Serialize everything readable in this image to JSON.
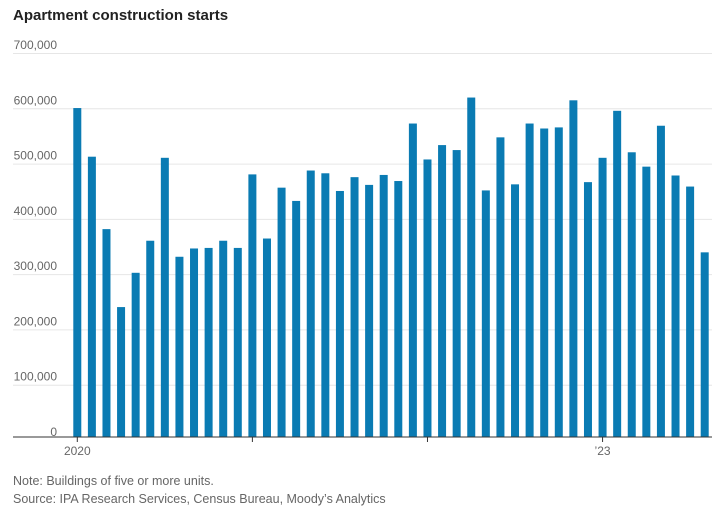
{
  "chart_data": {
    "type": "bar",
    "title": "Apartment construction starts",
    "xlabel": "",
    "ylabel": "",
    "ylim": [
      0,
      700000
    ],
    "yticks": [
      0,
      100000,
      200000,
      300000,
      400000,
      500000,
      600000,
      700000
    ],
    "ytick_labels": [
      "0",
      "100,000",
      "200,000",
      "300,000",
      "400,000",
      "500,000",
      "600,000",
      "700,000"
    ],
    "xtick_labels": [
      {
        "index": 0,
        "label": "2020"
      },
      {
        "index": 12,
        "label": ""
      },
      {
        "index": 24,
        "label": ""
      },
      {
        "index": 36,
        "label": "’23"
      }
    ],
    "categories": [
      "2020-01",
      "2020-02",
      "2020-03",
      "2020-04",
      "2020-05",
      "2020-06",
      "2020-07",
      "2020-08",
      "2020-09",
      "2020-10",
      "2020-11",
      "2020-12",
      "2021-01",
      "2021-02",
      "2021-03",
      "2021-04",
      "2021-05",
      "2021-06",
      "2021-07",
      "2021-08",
      "2021-09",
      "2021-10",
      "2021-11",
      "2021-12",
      "2022-01",
      "2022-02",
      "2022-03",
      "2022-04",
      "2022-05",
      "2022-06",
      "2022-07",
      "2022-08",
      "2022-09",
      "2022-10",
      "2022-11",
      "2022-12",
      "2023-01",
      "2023-02",
      "2023-03",
      "2023-04",
      "2023-05",
      "2023-06",
      "2023-07",
      "2023-08"
    ],
    "values": [
      595000,
      507000,
      376000,
      235000,
      297000,
      355000,
      505000,
      326000,
      341000,
      342000,
      355000,
      342000,
      475000,
      359000,
      451000,
      427000,
      482000,
      477000,
      445000,
      470000,
      456000,
      474000,
      463000,
      567000,
      502000,
      528000,
      519000,
      614000,
      446000,
      542000,
      457000,
      567000,
      558000,
      560000,
      609000,
      461000,
      505000,
      590000,
      515000,
      489000,
      563000,
      473000,
      453000,
      334000
    ],
    "bar_color": "#0a7bb3",
    "grid": true
  },
  "note": "Note: Buildings of five or more units.",
  "source": "Source: IPA Research Services, Census Bureau, Moody’s Analytics"
}
